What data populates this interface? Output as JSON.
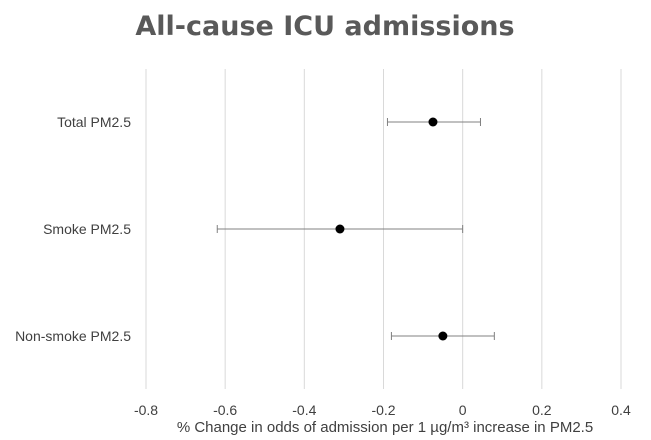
{
  "chart_data": {
    "type": "scatter",
    "title": "All-cause ICU admissions",
    "xlabel": "% Change in odds of admission per 1 µg/m³ increase in PM2.5",
    "xlim": [
      -0.8,
      0.4
    ],
    "xticks": [
      "-0.8",
      "-0.6",
      "-0.4",
      "-0.2",
      "0",
      "0.2",
      "0.4"
    ],
    "xtick_values": [
      -0.8,
      -0.6,
      -0.4,
      -0.2,
      0,
      0.2,
      0.4
    ],
    "grid": "vertical",
    "categories": [
      "Total PM2.5",
      "Smoke PM2.5",
      "Non-smoke PM2.5"
    ],
    "points": [
      {
        "label": "Total PM2.5",
        "estimate": -0.075,
        "lower": -0.19,
        "upper": 0.045
      },
      {
        "label": "Smoke PM2.5",
        "estimate": -0.31,
        "lower": -0.62,
        "upper": 0.0
      },
      {
        "label": "Non-smoke PM2.5",
        "estimate": -0.05,
        "lower": -0.18,
        "upper": 0.08
      }
    ],
    "colors": {
      "title": "#595959",
      "text": "#404040",
      "grid": "#d9d9d9",
      "errorbar": "#808080",
      "point": "#000000"
    }
  }
}
